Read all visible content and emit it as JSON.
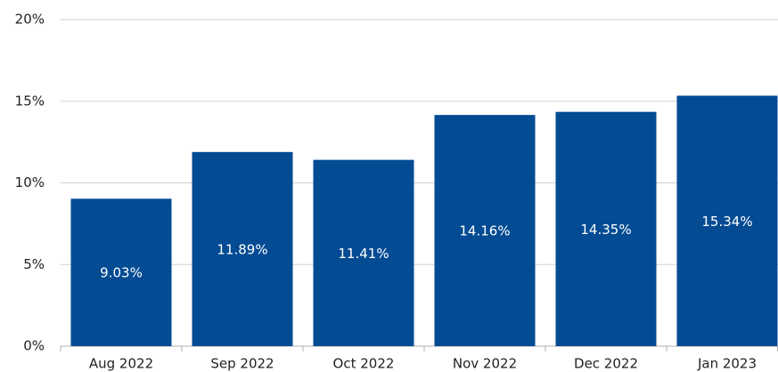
{
  "chart_data": {
    "type": "bar",
    "categories": [
      "Aug 2022",
      "Sep 2022",
      "Oct 2022",
      "Nov 2022",
      "Dec 2022",
      "Jan 2023"
    ],
    "values": [
      9.03,
      11.89,
      11.41,
      14.16,
      14.35,
      15.34
    ],
    "value_labels": [
      "9.03%",
      "11.89%",
      "11.41%",
      "14.16%",
      "14.35%",
      "15.34%"
    ],
    "color": "#034b93",
    "ylim": [
      0,
      20
    ],
    "yticks": [
      {
        "value": 0,
        "label": "0%"
      },
      {
        "value": 5,
        "label": "5%"
      },
      {
        "value": 10,
        "label": "10%"
      },
      {
        "value": 15,
        "label": "15%"
      },
      {
        "value": 20,
        "label": "20%"
      }
    ],
    "grid": true
  }
}
